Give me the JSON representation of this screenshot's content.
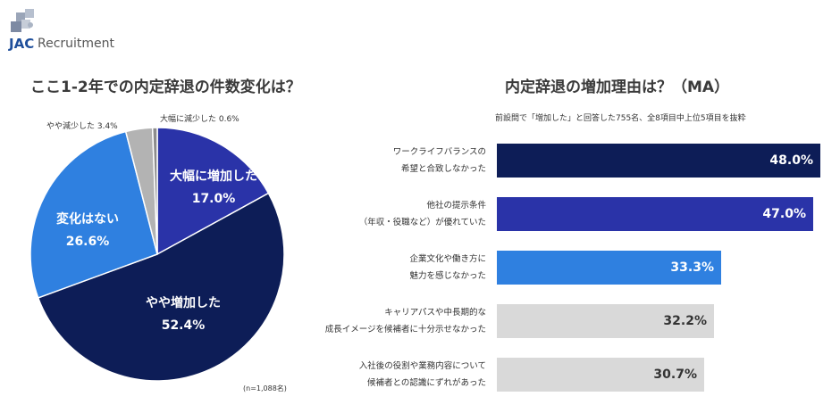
{
  "logo": {
    "jac": "JAC",
    "recruitment": "Recruitment"
  },
  "charts": {
    "left_title": "ここ1-2年での内定辞退の件数変化は？",
    "right_title": "内定辞退の増加理由は？（MA）",
    "right_subtitle": "前設問で「増加した」と回答した755名、全8項目中上位5項目を抜粋",
    "note": "(n=1,088名)"
  },
  "colors": {
    "navy": "#0d1d57",
    "indigo": "#2a33a8",
    "blue": "#2f80e0",
    "gray": "#d9d9d9",
    "gray_dark": "#b3b3b3"
  },
  "chart_data": [
    {
      "type": "pie",
      "title": "ここ1-2年での内定辞退の件数変化は？",
      "slices": [
        {
          "label": "大幅に増加した",
          "value": 17.0,
          "value_label": "17.0%",
          "color": "#2a33a8"
        },
        {
          "label": "やや増加した",
          "value": 52.4,
          "value_label": "52.4%",
          "color": "#0d1d57"
        },
        {
          "label": "変化はない",
          "value": 26.6,
          "value_label": "26.6%",
          "color": "#2f80e0"
        },
        {
          "label": "やや減少した",
          "value": 3.4,
          "value_label": "やや減少した 3.4%",
          "color": "#b3b3b3"
        },
        {
          "label": "大幅に減少した",
          "value": 0.6,
          "value_label": "大幅に減少した 0.6%",
          "color": "#8c8c8c"
        }
      ]
    },
    {
      "type": "bar",
      "orientation": "horizontal",
      "title": "内定辞退の増加理由は？（MA）",
      "categories": [
        [
          "ワークライフバランスの",
          "希望と合致しなかった"
        ],
        [
          "他社の提示条件",
          "（年収・役職など）が優れていた"
        ],
        [
          "企業文化や働き方に",
          "魅力を感じなかった"
        ],
        [
          "キャリアパスや中長期的な",
          "成長イメージを候補者に十分示せなかった"
        ],
        [
          "入社後の役割や業務内容について",
          "候補者との認識にずれがあった"
        ]
      ],
      "values": [
        48.0,
        47.0,
        33.3,
        32.2,
        30.7
      ],
      "value_labels": [
        "48.0%",
        "47.0%",
        "33.3%",
        "32.2%",
        "30.7%"
      ],
      "bar_colors": [
        "#0d1d57",
        "#2a33a8",
        "#2f80e0",
        "#d9d9d9",
        "#d9d9d9"
      ],
      "label_colors": [
        "#ffffff",
        "#ffffff",
        "#ffffff",
        "#333333",
        "#333333"
      ]
    }
  ]
}
